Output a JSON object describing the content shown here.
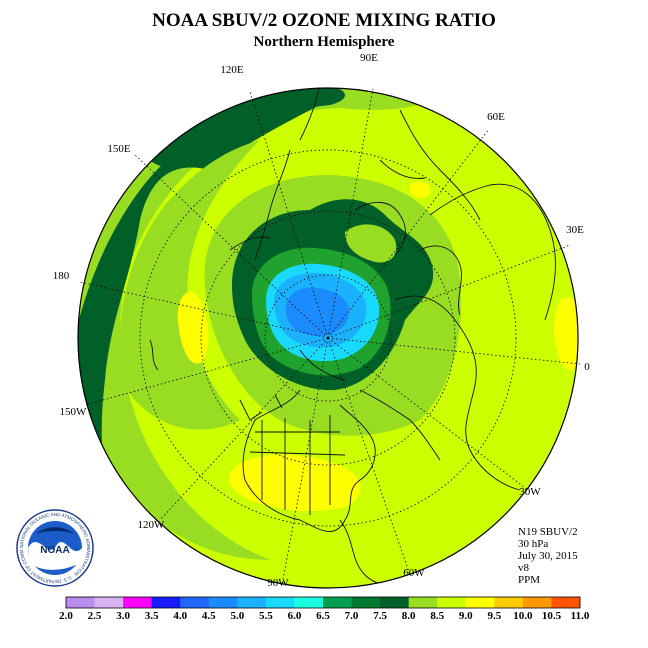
{
  "header": {
    "title": "NOAA SBUV/2 OZONE MIXING RATIO",
    "subtitle": "Northern Hemisphere"
  },
  "longitude_labels": {
    "e120": "120E",
    "e90": "90E",
    "e60": "60E",
    "e150": "150E",
    "e30": "30E",
    "d180": "180",
    "d0": "0",
    "w150": "150W",
    "w30": "30W",
    "w120": "120W",
    "w60": "60W",
    "w90": "90W"
  },
  "info": {
    "line1": "N19 SBUV/2",
    "line2": "30 hPa",
    "line3": "July 30, 2015",
    "line4": "v8",
    "line5": "PPM"
  },
  "colorbar": {
    "ticks": [
      "2.0",
      "2.5",
      "3.0",
      "3.5",
      "4.0",
      "4.5",
      "5.0",
      "5.5",
      "6.0",
      "6.5",
      "7.0",
      "7.5",
      "8.0",
      "8.5",
      "9.0",
      "9.5",
      "10.0",
      "10.5",
      "11.0"
    ],
    "colors": [
      "#b98cf0",
      "#d8b2f0",
      "#ff00ff",
      "#1a1aff",
      "#2266ff",
      "#1a8cff",
      "#1ab2ff",
      "#1ad9ff",
      "#1affe0",
      "#00a050",
      "#007a30",
      "#006028",
      "#99dd22",
      "#ccff00",
      "#ffff00",
      "#ffcc00",
      "#ff9900",
      "#ff5500",
      "#ff0000",
      "#8b4513"
    ]
  },
  "colors": {
    "level_6_5": "#1fa32e",
    "level_7_0": "#006028",
    "level_7_5": "#99dd22",
    "level_8_0": "#ccff00",
    "level_8_5": "#ffff00",
    "level_5_5": "#1ad9ff",
    "level_5_0": "#1ab2ff",
    "level_4_5": "#1a8cff"
  },
  "logo": {
    "text": "NOAA",
    "ring": "NATIONAL OCEANIC AND ATMOSPHERIC ADMINISTRATION · U.S. DEPARTMENT OF COMMERCE"
  }
}
